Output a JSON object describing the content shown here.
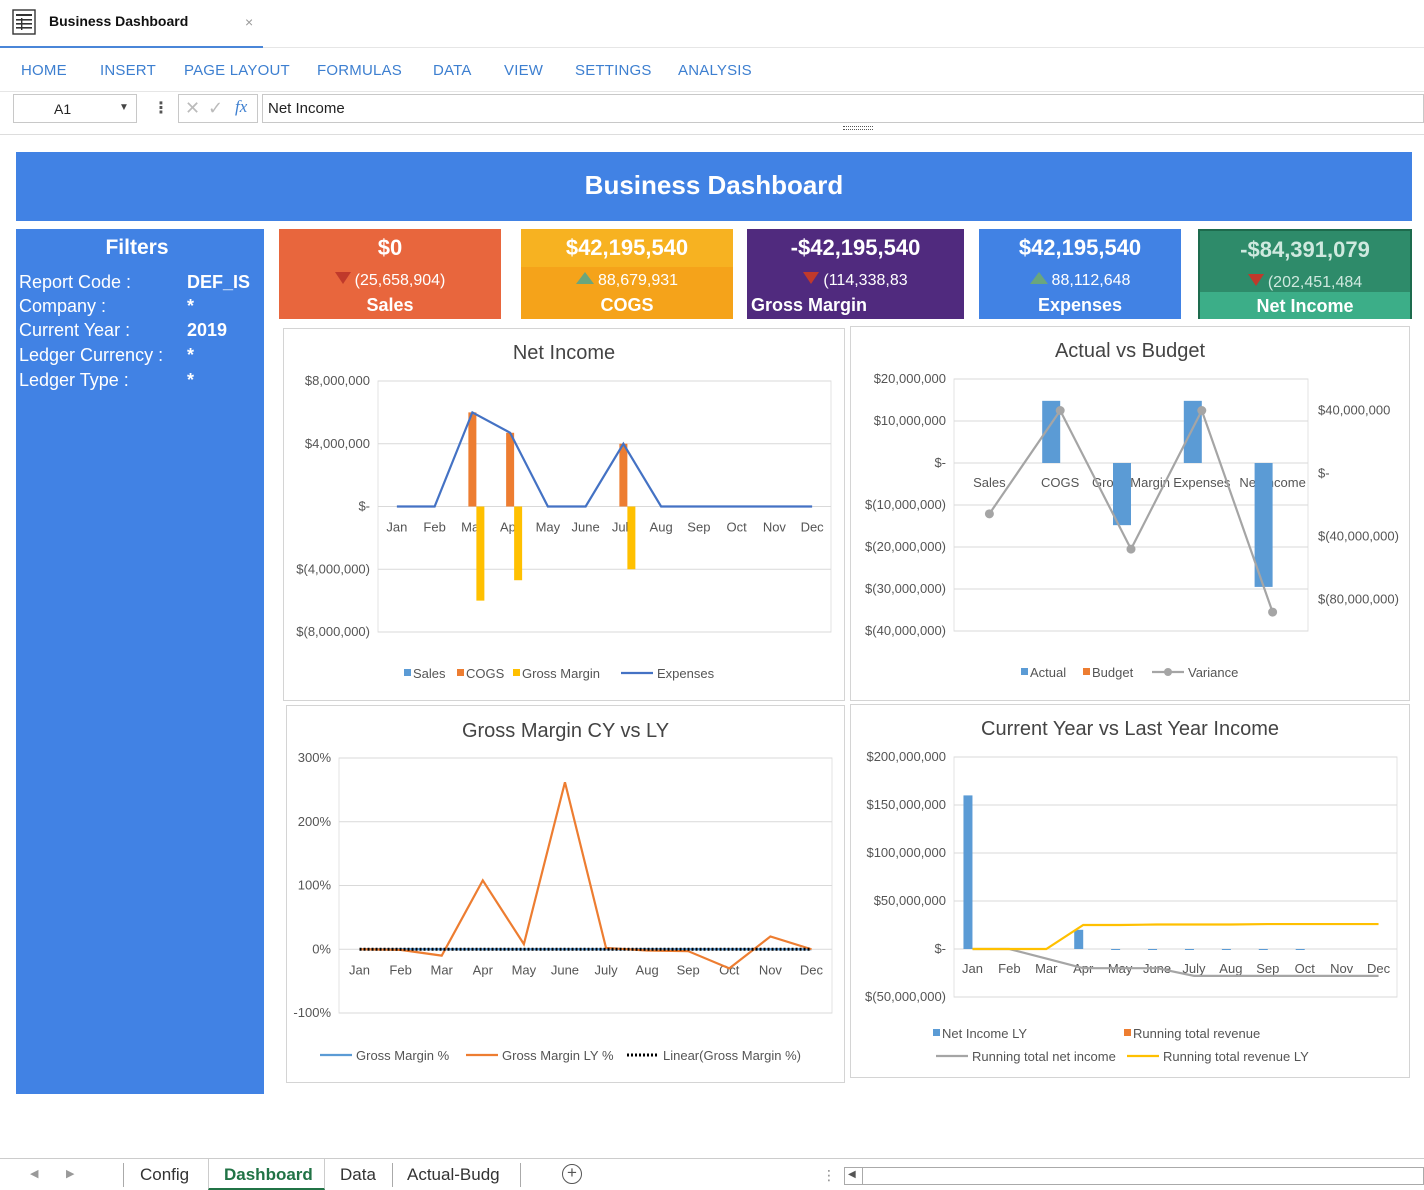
{
  "window": {
    "title": "Business Dashboard",
    "close_glyph": "×"
  },
  "ribbon": {
    "menus": [
      "HOME",
      "INSERT",
      "PAGE LAYOUT",
      "FORMULAS",
      "DATA",
      "VIEW",
      "SETTINGS",
      "ANALYSIS"
    ]
  },
  "formula_bar": {
    "cell_ref": "A1",
    "formula": "Net Income",
    "fx_label": "fx"
  },
  "dashboard": {
    "title": "Business Dashboard",
    "filters": {
      "title": "Filters",
      "rows": [
        {
          "label": "Report Code :",
          "value": "DEF_IS"
        },
        {
          "label": "Company :",
          "value": "*"
        },
        {
          "label": "Current Year :",
          "value": "2019"
        },
        {
          "label": "Ledger Currency :",
          "value": "*"
        },
        {
          "label": "Ledger Type :",
          "value": "*"
        }
      ]
    },
    "kpis": [
      {
        "value": "$0",
        "delta": "(25,658,904)",
        "trend": "down",
        "label": "Sales",
        "color": "#e8663d"
      },
      {
        "value": "$42,195,540",
        "delta": "88,679,931",
        "trend": "up",
        "label": "COGS",
        "color": "#f5a31a"
      },
      {
        "value": "-$42,195,540",
        "delta": "(114,338,83",
        "trend": "down",
        "label": "Gross Margin",
        "color": "#502a7e"
      },
      {
        "value": "$42,195,540",
        "delta": "88,112,648",
        "trend": "up",
        "label": "Expenses",
        "color": "#4182e4"
      },
      {
        "value": "-$84,391,079",
        "delta": "(202,451,484",
        "trend": "down",
        "label": "Net Income",
        "color": "#2e8b6a"
      }
    ]
  },
  "chart_data": [
    {
      "type": "bar",
      "title": "Net Income",
      "categories": [
        "Jan",
        "Feb",
        "Mar",
        "Apr",
        "May",
        "June",
        "July",
        "Aug",
        "Sep",
        "Oct",
        "Nov",
        "Dec"
      ],
      "y_ticks": [
        "$8,000,000",
        "$4,000,000",
        "$-",
        "$(4,000,000)",
        "$(8,000,000)"
      ],
      "ylim": [
        -8000000,
        8000000
      ],
      "series": [
        {
          "name": "Sales",
          "kind": "bar",
          "color": "#5b9bd5",
          "values": [
            0,
            0,
            0,
            0,
            0,
            0,
            0,
            0,
            0,
            0,
            0,
            0
          ]
        },
        {
          "name": "COGS",
          "kind": "bar",
          "color": "#ed7d31",
          "values": [
            0,
            0,
            6000000,
            4700000,
            0,
            0,
            4000000,
            0,
            0,
            0,
            0,
            0
          ]
        },
        {
          "name": "Gross Margin",
          "kind": "bar",
          "color": "#ffc000",
          "values": [
            0,
            0,
            -6000000,
            -4700000,
            0,
            0,
            -4000000,
            0,
            0,
            0,
            0,
            0
          ]
        },
        {
          "name": "Expenses",
          "kind": "line",
          "color": "#4472c4",
          "values": [
            0,
            0,
            6000000,
            4700000,
            0,
            0,
            4000000,
            0,
            0,
            0,
            0,
            0
          ]
        }
      ]
    },
    {
      "type": "bar",
      "title": "Actual vs Budget",
      "categories": [
        "Sales",
        "COGS",
        "Gross Margin",
        "Expenses",
        "Net Income"
      ],
      "y_ticks": [
        "$20,000,000",
        "$10,000,000",
        "$-",
        "$(10,000,000)",
        "$(20,000,000)",
        "$(30,000,000)",
        "$(40,000,000)"
      ],
      "ylim": [
        -40000000,
        20000000
      ],
      "y2_ticks": [
        "$40,000,000",
        "$-",
        "$(40,000,000)",
        "$(80,000,000)"
      ],
      "y2lim": [
        -100000000,
        60000000
      ],
      "series": [
        {
          "name": "Actual",
          "kind": "bar",
          "color": "#5b9bd5",
          "values": [
            0,
            14800000,
            -14800000,
            14800000,
            -29500000
          ]
        },
        {
          "name": "Budget",
          "kind": "bar",
          "color": "#ed7d31",
          "values": [
            0,
            0,
            0,
            0,
            0
          ]
        },
        {
          "name": "Variance",
          "kind": "line",
          "axis": "secondary",
          "color": "#a5a5a5",
          "values": [
            -25600000,
            40000000,
            -48000000,
            40000000,
            -88000000
          ]
        }
      ]
    },
    {
      "type": "line",
      "title": "Gross Margin CY vs LY",
      "categories": [
        "Jan",
        "Feb",
        "Mar",
        "Apr",
        "May",
        "June",
        "July",
        "Aug",
        "Sep",
        "Oct",
        "Nov",
        "Dec"
      ],
      "y_ticks": [
        "300%",
        "200%",
        "100%",
        "0%",
        "-100%"
      ],
      "ylim": [
        -100,
        300
      ],
      "series": [
        {
          "name": "Gross Margin %",
          "kind": "line",
          "color": "#5b9bd5",
          "values": [
            0,
            0,
            0,
            0,
            0,
            0,
            0,
            0,
            0,
            0,
            0,
            0
          ]
        },
        {
          "name": "Gross Margin LY %",
          "kind": "line",
          "color": "#ed7d31",
          "values": [
            0,
            -1,
            -10,
            108,
            8,
            262,
            2,
            -2,
            -3,
            -30,
            20,
            0
          ]
        },
        {
          "name": "Linear(Gross Margin %)",
          "kind": "trend",
          "color": "#000000",
          "values": [
            0,
            0,
            0,
            0,
            0,
            0,
            0,
            0,
            0,
            0,
            0,
            0
          ]
        }
      ]
    },
    {
      "type": "bar",
      "title": "Current Year vs Last Year Income",
      "categories": [
        "Jan",
        "Feb",
        "Mar",
        "Apr",
        "May",
        "June",
        "July",
        "Aug",
        "Sep",
        "Oct",
        "Nov",
        "Dec"
      ],
      "y_ticks": [
        "$200,000,000",
        "$150,000,000",
        "$100,000,000",
        "$50,000,000",
        "$-",
        "$(50,000,000)"
      ],
      "ylim": [
        -50000000,
        200000000
      ],
      "series": [
        {
          "name": "Net Income LY",
          "kind": "bar",
          "color": "#5b9bd5",
          "values": [
            160000000,
            0,
            0,
            20000000,
            -1000000,
            -1000000,
            -1000000,
            -1000000,
            -1000000,
            -1000000,
            0,
            0
          ]
        },
        {
          "name": "Running total revenue",
          "kind": "bar",
          "color": "#ed7d31",
          "values": [
            0,
            0,
            0,
            0,
            0,
            0,
            0,
            0,
            0,
            0,
            0,
            0
          ]
        },
        {
          "name": "Running total net income",
          "kind": "line",
          "color": "#a5a5a5",
          "values": [
            0,
            0,
            -10000000,
            -20000000,
            -20000000,
            -20000000,
            -28000000,
            -28000000,
            -28000000,
            -28000000,
            -28000000,
            -28000000
          ]
        },
        {
          "name": "Running total revenue LY",
          "kind": "line",
          "color": "#ffc000",
          "values": [
            0,
            0,
            0,
            25000000,
            25000000,
            25500000,
            25500000,
            25500000,
            26000000,
            26000000,
            26000000,
            26000000
          ]
        }
      ]
    }
  ],
  "sheet_tabs": {
    "tabs": [
      "Config",
      "Dashboard",
      "Data",
      "Actual-Budg"
    ],
    "active": "Dashboard",
    "add_glyph": "+"
  }
}
